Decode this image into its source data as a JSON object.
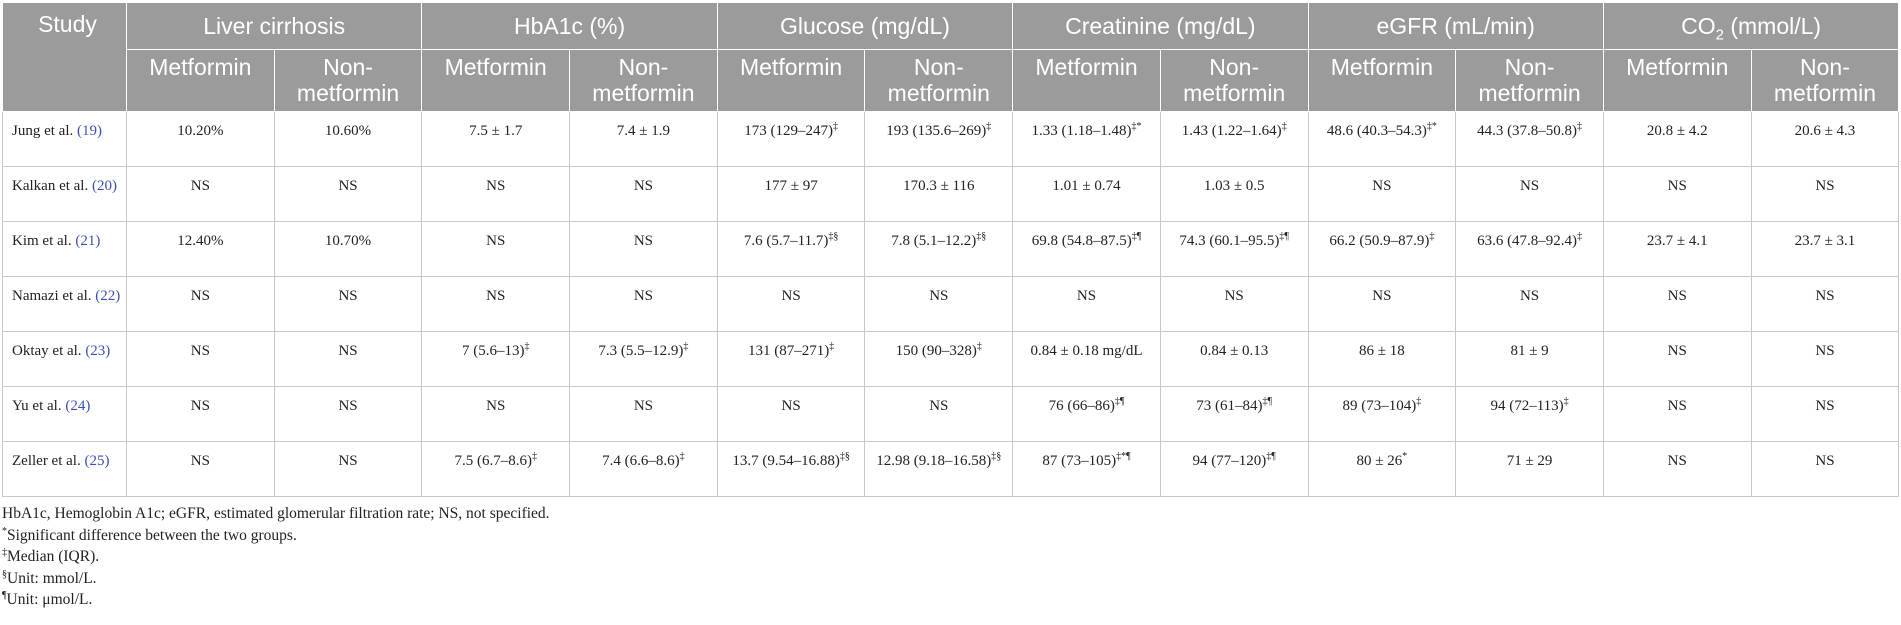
{
  "table": {
    "study_header": "Study",
    "groups": [
      {
        "label": "Liver cirrhosis",
        "sub": ""
      },
      {
        "label": "HbA1c (%)",
        "sub": ""
      },
      {
        "label": "Glucose (mg/dL)",
        "sub": ""
      },
      {
        "label": "Creatinine (mg/dL)",
        "sub": ""
      },
      {
        "label": "eGFR (mL/min)",
        "sub": ""
      },
      {
        "label": "CO",
        "sub": "2",
        "suffix": " (mmol/L)"
      }
    ],
    "subheaders": [
      "Metformin",
      "Non-metformin",
      "Metformin",
      "Non-metformin",
      "Metformin",
      "Non-metformin",
      "Metformin",
      "Non-metformin",
      "Metformin",
      "Non-metformin",
      "Metformin",
      "Non-metformin"
    ],
    "rows": [
      {
        "study": "Jung et al.",
        "ref": "(19)",
        "cells": [
          {
            "t": "10.20%",
            "s": ""
          },
          {
            "t": "10.60%",
            "s": ""
          },
          {
            "t": "7.5 ± 1.7",
            "s": ""
          },
          {
            "t": "7.4 ± 1.9",
            "s": ""
          },
          {
            "t": "173 (129–247)",
            "s": "‡"
          },
          {
            "t": "193 (135.6–269)",
            "s": "‡"
          },
          {
            "t": "1.33 (1.18–1.48)",
            "s": "‡*"
          },
          {
            "t": "1.43 (1.22–1.64)",
            "s": "‡"
          },
          {
            "t": "48.6 (40.3–54.3)",
            "s": "‡*"
          },
          {
            "t": "44.3 (37.8–50.8)",
            "s": "‡"
          },
          {
            "t": "20.8 ± 4.2",
            "s": ""
          },
          {
            "t": "20.6 ± 4.3",
            "s": ""
          }
        ]
      },
      {
        "study": "Kalkan et al.",
        "ref": "(20)",
        "cells": [
          {
            "t": "NS",
            "s": ""
          },
          {
            "t": "NS",
            "s": ""
          },
          {
            "t": "NS",
            "s": ""
          },
          {
            "t": "NS",
            "s": ""
          },
          {
            "t": "177 ± 97",
            "s": ""
          },
          {
            "t": "170.3 ± 116",
            "s": ""
          },
          {
            "t": "1.01 ± 0.74",
            "s": ""
          },
          {
            "t": "1.03 ± 0.5",
            "s": ""
          },
          {
            "t": "NS",
            "s": ""
          },
          {
            "t": "NS",
            "s": ""
          },
          {
            "t": "NS",
            "s": ""
          },
          {
            "t": "NS",
            "s": ""
          }
        ]
      },
      {
        "study": "Kim et al.",
        "ref": "(21)",
        "cells": [
          {
            "t": "12.40%",
            "s": ""
          },
          {
            "t": "10.70%",
            "s": ""
          },
          {
            "t": "NS",
            "s": ""
          },
          {
            "t": "NS",
            "s": ""
          },
          {
            "t": "7.6 (5.7–11.7)",
            "s": "‡§"
          },
          {
            "t": "7.8 (5.1–12.2)",
            "s": "‡§"
          },
          {
            "t": "69.8 (54.8–87.5)",
            "s": "‡¶"
          },
          {
            "t": "74.3 (60.1–95.5)",
            "s": "‡¶"
          },
          {
            "t": "66.2 (50.9–87.9)",
            "s": "‡"
          },
          {
            "t": "63.6 (47.8–92.4)",
            "s": "‡"
          },
          {
            "t": "23.7 ± 4.1",
            "s": ""
          },
          {
            "t": "23.7 ± 3.1",
            "s": ""
          }
        ]
      },
      {
        "study": "Namazi et al.",
        "ref": "(22)",
        "cells": [
          {
            "t": "NS",
            "s": ""
          },
          {
            "t": "NS",
            "s": ""
          },
          {
            "t": "NS",
            "s": ""
          },
          {
            "t": "NS",
            "s": ""
          },
          {
            "t": "NS",
            "s": ""
          },
          {
            "t": "NS",
            "s": ""
          },
          {
            "t": "NS",
            "s": ""
          },
          {
            "t": "NS",
            "s": ""
          },
          {
            "t": "NS",
            "s": ""
          },
          {
            "t": "NS",
            "s": ""
          },
          {
            "t": "NS",
            "s": ""
          },
          {
            "t": "NS",
            "s": ""
          }
        ]
      },
      {
        "study": "Oktay et al.",
        "ref": "(23)",
        "cells": [
          {
            "t": "NS",
            "s": ""
          },
          {
            "t": "NS",
            "s": ""
          },
          {
            "t": "7 (5.6–13)",
            "s": "‡"
          },
          {
            "t": "7.3 (5.5–12.9)",
            "s": "‡"
          },
          {
            "t": "131 (87–271)",
            "s": "‡"
          },
          {
            "t": "150 (90–328)",
            "s": "‡"
          },
          {
            "t": "0.84 ± 0.18 mg/dL",
            "s": ""
          },
          {
            "t": "0.84 ± 0.13",
            "s": ""
          },
          {
            "t": "86 ± 18",
            "s": ""
          },
          {
            "t": "81 ± 9",
            "s": ""
          },
          {
            "t": "NS",
            "s": ""
          },
          {
            "t": "NS",
            "s": ""
          }
        ]
      },
      {
        "study": "Yu et al.",
        "ref": "(24)",
        "cells": [
          {
            "t": "NS",
            "s": ""
          },
          {
            "t": "NS",
            "s": ""
          },
          {
            "t": "NS",
            "s": ""
          },
          {
            "t": "NS",
            "s": ""
          },
          {
            "t": "NS",
            "s": ""
          },
          {
            "t": "NS",
            "s": ""
          },
          {
            "t": "76 (66–86)",
            "s": "‡¶"
          },
          {
            "t": "73 (61–84)",
            "s": "‡¶"
          },
          {
            "t": "89 (73–104)",
            "s": "‡"
          },
          {
            "t": "94 (72–113)",
            "s": "‡"
          },
          {
            "t": "NS",
            "s": ""
          },
          {
            "t": "NS",
            "s": ""
          }
        ]
      },
      {
        "study": "Zeller et al.",
        "ref": "(25)",
        "cells": [
          {
            "t": "NS",
            "s": ""
          },
          {
            "t": "NS",
            "s": ""
          },
          {
            "t": "7.5 (6.7–8.6)",
            "s": "‡"
          },
          {
            "t": "7.4 (6.6–8.6)",
            "s": "‡"
          },
          {
            "t": "13.7 (9.54–16.88)",
            "s": "‡§"
          },
          {
            "t": "12.98 (9.18–16.58)",
            "s": "‡§"
          },
          {
            "t": "87 (73–105)",
            "s": "‡*¶"
          },
          {
            "t": "94 (77–120)",
            "s": "‡¶"
          },
          {
            "t": "80 ± 26",
            "s": "*"
          },
          {
            "t": "71 ± 29",
            "s": ""
          },
          {
            "t": "NS",
            "s": ""
          },
          {
            "t": "NS",
            "s": ""
          }
        ]
      }
    ]
  },
  "footnotes": [
    {
      "mark": "",
      "text": "HbA1c, Hemoglobin A1c; eGFR, estimated glomerular filtration rate; NS, not specified."
    },
    {
      "mark": "*",
      "text": "Significant difference between the two groups."
    },
    {
      "mark": "‡",
      "text": "Median (IQR)."
    },
    {
      "mark": "§",
      "text": "Unit: mmol/L."
    },
    {
      "mark": "¶",
      "text": "Unit: μmol/L."
    }
  ]
}
